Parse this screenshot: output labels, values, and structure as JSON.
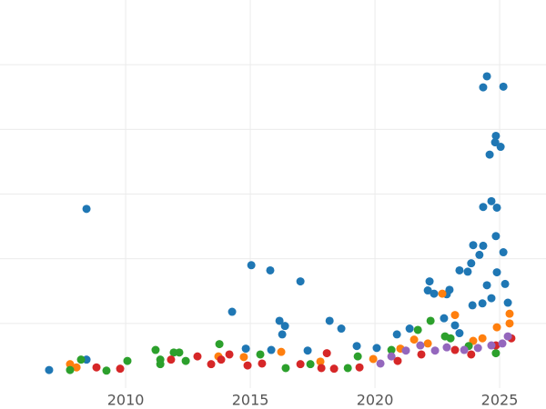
{
  "chart_data": {
    "type": "scatter",
    "xlim": [
      2004.96,
      2026.86
    ],
    "xticks": [
      2010,
      2015,
      2020,
      2025
    ],
    "ylim": [
      0,
      6
    ],
    "yticks": [
      1,
      2,
      3,
      4,
      5
    ],
    "grid": true,
    "series": [
      {
        "color": "#1f77b4",
        "x": [
          2006.93,
          2008.43,
          2008.43,
          2014.27,
          2015.04,
          2015.8,
          2017.01,
          2016.17,
          2016.39,
          2016.28,
          2018.18,
          2018.65,
          2014.82,
          2015.84,
          2017.3,
          2019.27,
          2020.07,
          2020.88,
          2021.39,
          2022.19,
          2022.12,
          2022.37,
          2022.99,
          2022.88,
          2022.77,
          2023.39,
          2023.72,
          2023.94,
          2023.86,
          2024.19,
          2024.34,
          2024.34,
          2024.67,
          2024.89,
          2024.85,
          2025.15,
          2024.49,
          2024.89,
          2025.22,
          2025.33,
          2024.67,
          2024.31,
          2023.91,
          2024.34,
          2024.49,
          2025.15,
          2024.85,
          2024.82,
          2025.04,
          2024.6,
          2023.21,
          2023.39
        ],
        "values": [
          0.28,
          2.77,
          0.44,
          1.18,
          1.9,
          1.82,
          1.65,
          1.04,
          0.96,
          0.83,
          1.04,
          0.92,
          0.61,
          0.59,
          0.58,
          0.65,
          0.62,
          0.83,
          0.92,
          1.65,
          1.51,
          1.46,
          1.52,
          1.45,
          1.08,
          1.82,
          1.8,
          2.21,
          1.93,
          2.06,
          2.2,
          2.8,
          2.89,
          2.79,
          2.35,
          2.1,
          1.59,
          1.79,
          1.61,
          1.32,
          1.39,
          1.31,
          1.28,
          4.65,
          4.82,
          4.66,
          3.9,
          3.8,
          3.73,
          3.61,
          0.97,
          0.85
        ]
      },
      {
        "color": "#ff7f0e",
        "x": [
          2007.77,
          2008.03,
          2013.72,
          2014.74,
          2016.24,
          2017.81,
          2019.93,
          2021.02,
          2021.57,
          2022.7,
          2023.21,
          2023.94,
          2024.89,
          2025.4,
          2025.4,
          2024.31,
          2022.12
        ],
        "values": [
          0.37,
          0.32,
          0.49,
          0.48,
          0.56,
          0.41,
          0.45,
          0.61,
          0.75,
          1.46,
          1.13,
          0.73,
          0.94,
          1.15,
          1.0,
          0.77,
          0.69
        ]
      },
      {
        "color": "#2ca02c",
        "x": [
          2007.77,
          2008.21,
          2009.23,
          2010.07,
          2011.2,
          2011.39,
          2011.39,
          2011.93,
          2012.15,
          2012.41,
          2013.76,
          2015.4,
          2016.42,
          2017.41,
          2018.91,
          2019.31,
          2020.66,
          2021.72,
          2022.23,
          2023.03,
          2023.76,
          2024.85,
          2022.81
        ],
        "values": [
          0.28,
          0.44,
          0.27,
          0.42,
          0.59,
          0.44,
          0.37,
          0.55,
          0.55,
          0.42,
          0.68,
          0.52,
          0.31,
          0.37,
          0.31,
          0.49,
          0.59,
          0.9,
          1.04,
          0.77,
          0.65,
          0.54,
          0.8
        ]
      },
      {
        "color": "#d62728",
        "x": [
          2008.83,
          2009.78,
          2011.82,
          2012.88,
          2013.43,
          2013.83,
          2014.16,
          2014.89,
          2015.47,
          2017.01,
          2017.85,
          2018.07,
          2018.36,
          2019.38,
          2020.91,
          2021.86,
          2023.21,
          2023.86,
          2024.85,
          2025.47
        ],
        "values": [
          0.32,
          0.3,
          0.44,
          0.49,
          0.37,
          0.44,
          0.52,
          0.35,
          0.38,
          0.37,
          0.31,
          0.54,
          0.3,
          0.32,
          0.42,
          0.52,
          0.59,
          0.52,
          0.66,
          0.77
        ]
      },
      {
        "color": "#9467bd",
        "x": [
          2020.22,
          2020.66,
          2021.24,
          2021.82,
          2022.41,
          2022.88,
          2023.58,
          2024.13,
          2024.67,
          2025.11,
          2025.33
        ],
        "values": [
          0.38,
          0.49,
          0.58,
          0.66,
          0.58,
          0.63,
          0.59,
          0.62,
          0.66,
          0.69,
          0.8
        ]
      }
    ]
  }
}
